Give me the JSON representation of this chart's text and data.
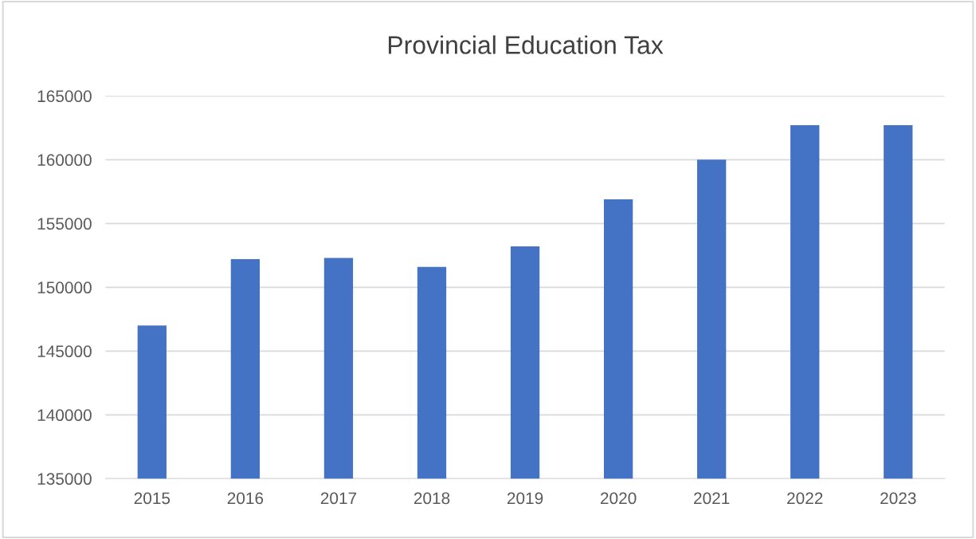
{
  "chart_data": {
    "type": "bar",
    "title": "Provincial Education Tax",
    "categories": [
      "2015",
      "2016",
      "2017",
      "2018",
      "2019",
      "2020",
      "2021",
      "2022",
      "2023"
    ],
    "values": [
      147000,
      152200,
      152300,
      151600,
      153200,
      156900,
      160000,
      162700,
      162700
    ],
    "color": "#4472c4",
    "ylim": [
      135000,
      165000
    ],
    "yticks": [
      135000,
      140000,
      145000,
      150000,
      155000,
      160000,
      165000
    ],
    "grid": "y"
  }
}
